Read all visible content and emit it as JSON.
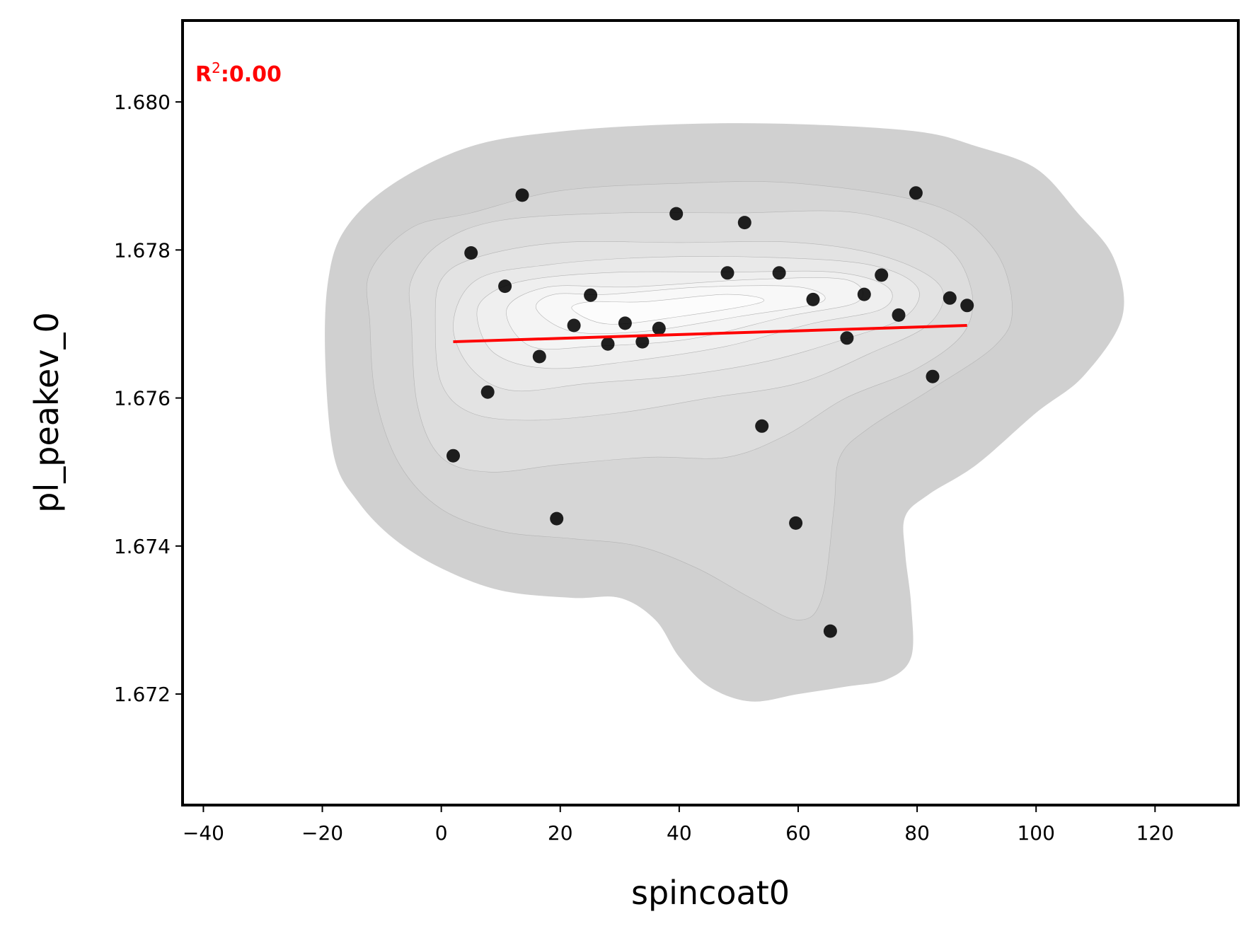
{
  "chart_data": {
    "type": "scatter",
    "title": "",
    "xlabel": "spincoat0",
    "ylabel": "pl_peakev_0",
    "xlim": [
      -43.5,
      134
    ],
    "ylim": [
      1.6705,
      1.6811
    ],
    "xticks": [
      -40,
      -20,
      0,
      20,
      40,
      60,
      80,
      100,
      120
    ],
    "xtick_labels": [
      "−40",
      "−20",
      "0",
      "20",
      "40",
      "60",
      "80",
      "100",
      "120"
    ],
    "yticks": [
      1.672,
      1.674,
      1.676,
      1.678,
      1.68
    ],
    "ytick_labels": [
      "1.672",
      "1.674",
      "1.676",
      "1.678",
      "1.680"
    ],
    "grid": false,
    "annotation": {
      "prefix": "R",
      "superscript": "2",
      "suffix": ":0.00",
      "color": "#ff0000"
    },
    "points": {
      "color": "#000000",
      "x": [
        2.0,
        5.0,
        7.8,
        10.7,
        13.6,
        16.5,
        19.4,
        22.3,
        25.1,
        28.0,
        30.9,
        33.8,
        36.6,
        39.5,
        48.1,
        51.0,
        53.9,
        56.8,
        59.6,
        62.5,
        65.4,
        68.2,
        71.1,
        74.0,
        76.9,
        79.8,
        82.6,
        85.5,
        88.4
      ],
      "y": [
        1.67522,
        1.67796,
        1.67608,
        1.67751,
        1.67874,
        1.67656,
        1.67437,
        1.67698,
        1.67739,
        1.67673,
        1.67701,
        1.67676,
        1.67694,
        1.67849,
        1.67769,
        1.67837,
        1.67562,
        1.67769,
        1.67431,
        1.67733,
        1.67285,
        1.67681,
        1.6774,
        1.67766,
        1.67712,
        1.67877,
        1.67629,
        1.67735,
        1.67725
      ]
    },
    "fit_line": {
      "color": "#ff0000",
      "x": [
        2.0,
        88.4
      ],
      "y": [
        1.67676,
        1.67698
      ]
    },
    "density_contours": {
      "colors": [
        "#d0d0d0",
        "#d6d6d6",
        "#dddddd",
        "#e3e3e3",
        "#e9e9e9",
        "#efefef",
        "#f4f4f4",
        "#f8f8f8",
        "#fcfcfc"
      ],
      "levels": [
        [
          [
            -19.5,
            1.6765
          ],
          [
            -18,
            1.6752
          ],
          [
            -14,
            1.6746
          ],
          [
            -8,
            1.6741
          ],
          [
            0,
            1.6737
          ],
          [
            10,
            1.6734
          ],
          [
            22,
            1.6733
          ],
          [
            30,
            1.6733
          ],
          [
            36,
            1.673
          ],
          [
            40,
            1.6725
          ],
          [
            45,
            1.6721
          ],
          [
            52,
            1.6719
          ],
          [
            60,
            1.672
          ],
          [
            68,
            1.6721
          ],
          [
            75,
            1.6722
          ],
          [
            79,
            1.6725
          ],
          [
            79,
            1.6732
          ],
          [
            78,
            1.6739
          ],
          [
            78,
            1.6744
          ],
          [
            82,
            1.6747
          ],
          [
            90,
            1.6751
          ],
          [
            100,
            1.6758
          ],
          [
            108,
            1.6763
          ],
          [
            114.5,
            1.6771
          ],
          [
            113,
            1.6779
          ],
          [
            107,
            1.6785
          ],
          [
            100,
            1.6791
          ],
          [
            90,
            1.6794
          ],
          [
            80,
            1.6796
          ],
          [
            60,
            1.6797
          ],
          [
            40,
            1.6797
          ],
          [
            20,
            1.6796
          ],
          [
            5,
            1.6794
          ],
          [
            -8,
            1.6789
          ],
          [
            -16,
            1.6783
          ],
          [
            -19,
            1.6776
          ]
        ],
        [
          [
            -12,
            1.677
          ],
          [
            -11,
            1.676
          ],
          [
            -7,
            1.6751
          ],
          [
            0,
            1.6745
          ],
          [
            10,
            1.6742
          ],
          [
            22,
            1.6741
          ],
          [
            33,
            1.674
          ],
          [
            43,
            1.6737
          ],
          [
            52,
            1.6733
          ],
          [
            60,
            1.673
          ],
          [
            64,
            1.6733
          ],
          [
            66,
            1.6745
          ],
          [
            67,
            1.6752
          ],
          [
            72,
            1.6756
          ],
          [
            82,
            1.6761
          ],
          [
            93,
            1.6767
          ],
          [
            96,
            1.6772
          ],
          [
            93,
            1.678
          ],
          [
            83,
            1.6786
          ],
          [
            60,
            1.6789
          ],
          [
            40,
            1.6789
          ],
          [
            20,
            1.6788
          ],
          [
            5,
            1.6785
          ],
          [
            -5,
            1.6783
          ],
          [
            -12,
            1.6777
          ]
        ],
        [
          [
            -5,
            1.677
          ],
          [
            -4,
            1.6759
          ],
          [
            0,
            1.6752
          ],
          [
            8,
            1.675
          ],
          [
            20,
            1.6751
          ],
          [
            35,
            1.6752
          ],
          [
            48,
            1.6752
          ],
          [
            58,
            1.6755
          ],
          [
            68,
            1.676
          ],
          [
            80,
            1.6764
          ],
          [
            88,
            1.6769
          ],
          [
            89,
            1.6775
          ],
          [
            84,
            1.6781
          ],
          [
            70,
            1.6785
          ],
          [
            50,
            1.6785
          ],
          [
            30,
            1.6785
          ],
          [
            10,
            1.6784
          ],
          [
            0,
            1.6781
          ],
          [
            -5,
            1.6776
          ]
        ],
        [
          [
            -1,
            1.677
          ],
          [
            0,
            1.6762
          ],
          [
            5,
            1.6758
          ],
          [
            15,
            1.6757
          ],
          [
            30,
            1.6758
          ],
          [
            45,
            1.676
          ],
          [
            60,
            1.6762
          ],
          [
            72,
            1.6766
          ],
          [
            82,
            1.677
          ],
          [
            84,
            1.6775
          ],
          [
            75,
            1.6779
          ],
          [
            60,
            1.6781
          ],
          [
            40,
            1.6781
          ],
          [
            20,
            1.6781
          ],
          [
            6,
            1.6779
          ],
          [
            0,
            1.6776
          ]
        ],
        [
          [
            2,
            1.677
          ],
          [
            5,
            1.6764
          ],
          [
            12,
            1.6761
          ],
          [
            25,
            1.6762
          ],
          [
            40,
            1.6763
          ],
          [
            55,
            1.6765
          ],
          [
            68,
            1.6768
          ],
          [
            78,
            1.6771
          ],
          [
            80,
            1.6775
          ],
          [
            72,
            1.6778
          ],
          [
            55,
            1.6779
          ],
          [
            35,
            1.6779
          ],
          [
            18,
            1.6778
          ],
          [
            6,
            1.6776
          ]
        ],
        [
          [
            6,
            1.6771
          ],
          [
            9,
            1.6766
          ],
          [
            18,
            1.6764
          ],
          [
            32,
            1.6765
          ],
          [
            48,
            1.6767
          ],
          [
            62,
            1.677
          ],
          [
            74,
            1.6772
          ],
          [
            75,
            1.6775
          ],
          [
            66,
            1.6777
          ],
          [
            48,
            1.6777
          ],
          [
            30,
            1.6777
          ],
          [
            15,
            1.6776
          ],
          [
            8,
            1.6774
          ]
        ],
        [
          [
            11,
            1.6772
          ],
          [
            15,
            1.6767
          ],
          [
            26,
            1.6767
          ],
          [
            42,
            1.6768
          ],
          [
            58,
            1.6771
          ],
          [
            70,
            1.6773
          ],
          [
            68,
            1.6776
          ],
          [
            52,
            1.6776
          ],
          [
            32,
            1.6775
          ],
          [
            18,
            1.6775
          ]
        ],
        [
          [
            16,
            1.6772
          ],
          [
            22,
            1.6769
          ],
          [
            34,
            1.6769
          ],
          [
            50,
            1.6771
          ],
          [
            64,
            1.6773
          ],
          [
            60,
            1.6775
          ],
          [
            44,
            1.6775
          ],
          [
            28,
            1.6774
          ],
          [
            19,
            1.6774
          ]
        ],
        [
          [
            22,
            1.6772
          ],
          [
            28,
            1.677
          ],
          [
            40,
            1.6771
          ],
          [
            54,
            1.6773
          ],
          [
            48,
            1.6774
          ],
          [
            34,
            1.6773
          ],
          [
            25,
            1.6773
          ]
        ]
      ]
    }
  }
}
